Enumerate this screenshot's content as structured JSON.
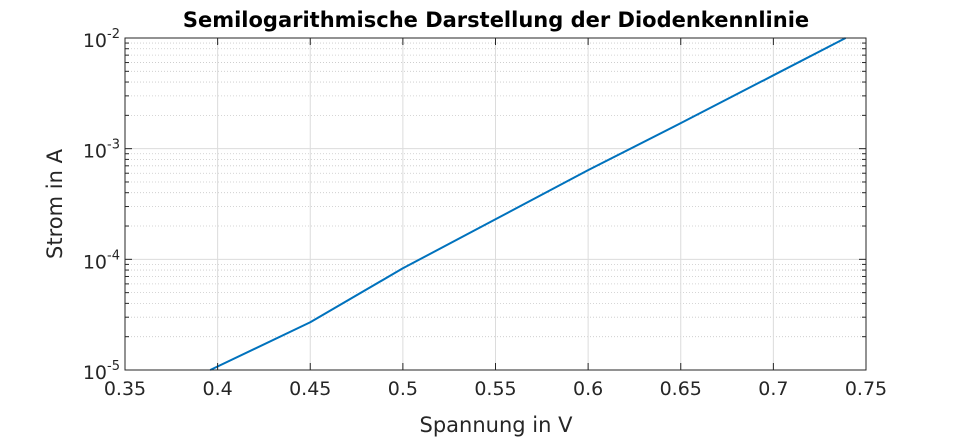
{
  "chart_data": {
    "type": "line",
    "title": "Semilogarithmische Darstellung der Diodenkennlinie",
    "xlabel": "Spannung in V",
    "ylabel": "Strom in A",
    "xlim": [
      0.35,
      0.75
    ],
    "ylim": [
      1e-05,
      0.01
    ],
    "y_scale": "log",
    "grid": true,
    "minor_grid": true,
    "x_ticks": [
      "0.35",
      "0.4",
      "0.45",
      "0.5",
      "0.55",
      "0.6",
      "0.65",
      "0.7",
      "0.75"
    ],
    "y_ticks": [
      {
        "base": "10",
        "exp": "-5"
      },
      {
        "base": "10",
        "exp": "-4"
      },
      {
        "base": "10",
        "exp": "-3"
      },
      {
        "base": "10",
        "exp": "-2"
      }
    ],
    "series": [
      {
        "color": "#0072BD",
        "x": [
          0.396,
          0.45,
          0.5,
          0.55,
          0.6,
          0.65,
          0.7,
          0.739
        ],
        "y": [
          1e-05,
          2.7e-05,
          8.3e-05,
          0.00023,
          0.00064,
          0.0017,
          0.0046,
          0.01
        ]
      }
    ]
  },
  "colors": {
    "line": "#0072BD",
    "axes": "#262626",
    "major_grid": "#dcdcdc",
    "minor_grid": "#c8c8c8"
  }
}
